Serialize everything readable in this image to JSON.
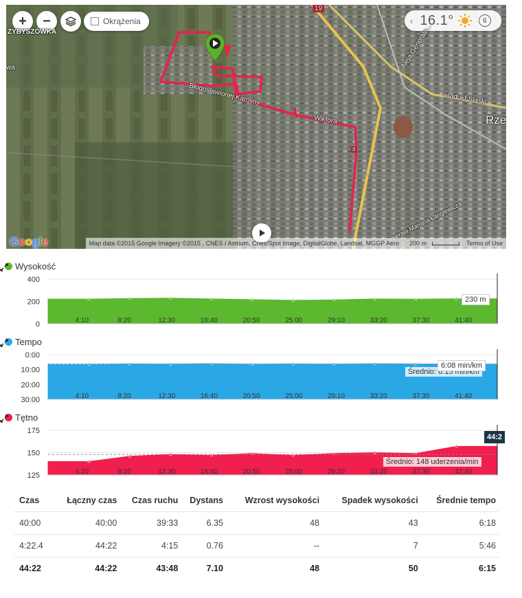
{
  "map": {
    "zoom_in_label": "+",
    "zoom_out_label": "−",
    "laps_toggle_label": "Okrążenia",
    "weather": {
      "temperature": "16.1°",
      "wind": "6"
    },
    "labels": {
      "district": "ZYBYSZÓWKA",
      "road_19": "19",
      "street_a": "Błogosławionej Karoliny",
      "street_b": "Wiktora",
      "avenue": "Aleja Generała...",
      "viaduct": "wiadukt Śląski",
      "city": "Rze",
      "street_c": "Generała Mariana Langiewicza",
      "small_marker": "8",
      "left_edge": "wa"
    },
    "google": "Google",
    "attribution": "Map data ©2015 Google Imagery ©2015 , CNES / Astrium, Cnes/Spot Image, DigitalGlobe, Landsat, MGGP Aero",
    "scale": "200 m",
    "terms": "Terms of Use"
  },
  "x_ticks": [
    "4:10",
    "8:20",
    "12:30",
    "16:40",
    "20:50",
    "25:00",
    "29:10",
    "33:20",
    "37:30",
    "41:40"
  ],
  "elevation": {
    "title": "Wysokość",
    "color": "#5cb82f",
    "y_ticks": [
      "400",
      "200",
      "0"
    ],
    "tooltip": "230 m"
  },
  "pace": {
    "title": "Tempo",
    "color": "#2aa8e6",
    "y_ticks": [
      "0:00",
      "10:00",
      "20:00",
      "30:00"
    ],
    "tooltip": "6:08 min/km",
    "average": "Średnio: 6:15 min/km"
  },
  "heart_rate": {
    "title": "Tętno",
    "color": "#f01f4e",
    "y_ticks": [
      "175",
      "150",
      "125"
    ],
    "tooltip": "44:2",
    "average": "Średnio: 148 uderzenia/min"
  },
  "chart_data": [
    {
      "type": "area",
      "title": "Wysokość",
      "x": [
        "4:10",
        "8:20",
        "12:30",
        "16:40",
        "20:50",
        "25:00",
        "29:10",
        "33:20",
        "37:30",
        "41:40"
      ],
      "ylim": [
        0,
        400
      ],
      "series": [
        {
          "values": [
            221,
            226,
            229,
            222,
            216,
            210,
            214,
            222,
            220,
            224
          ]
        }
      ]
    },
    {
      "type": "area",
      "title": "Tempo",
      "x": [
        "4:10",
        "8:20",
        "12:30",
        "16:40",
        "20:50",
        "25:00",
        "29:10",
        "33:20",
        "37:30",
        "41:40"
      ],
      "ylim": [
        "0:00",
        "30:00"
      ],
      "series": [
        {
          "values": [
            "6:30",
            "6:10",
            "6:20",
            "6:00",
            "6:25",
            "6:10",
            "6:20",
            "6:05",
            "6:15",
            "6:20"
          ]
        }
      ]
    },
    {
      "type": "area",
      "title": "Tętno",
      "x": [
        "4:10",
        "8:20",
        "12:30",
        "16:40",
        "20:50",
        "25:00",
        "29:10",
        "33:20",
        "37:30",
        "41:40"
      ],
      "ylim": [
        125,
        175
      ],
      "series": [
        {
          "values": [
            140,
            146,
            148,
            147,
            149,
            147,
            149,
            150,
            149,
            157
          ]
        }
      ]
    }
  ],
  "table": {
    "headers": [
      "Czas",
      "Łączny czas",
      "Czas ruchu",
      "Dystans",
      "Wzrost wysokości",
      "Spadek wysokości",
      "Średnie tempo"
    ],
    "rows": [
      [
        "40:00",
        "40:00",
        "39:33",
        "6.35",
        "48",
        "43",
        "6:18"
      ],
      [
        "4:22.4",
        "44:22",
        "4:15",
        "0.76",
        "--",
        "7",
        "5:46"
      ]
    ],
    "total": [
      "44:22",
      "44:22",
      "43:48",
      "7.10",
      "48",
      "50",
      "6:15"
    ]
  }
}
